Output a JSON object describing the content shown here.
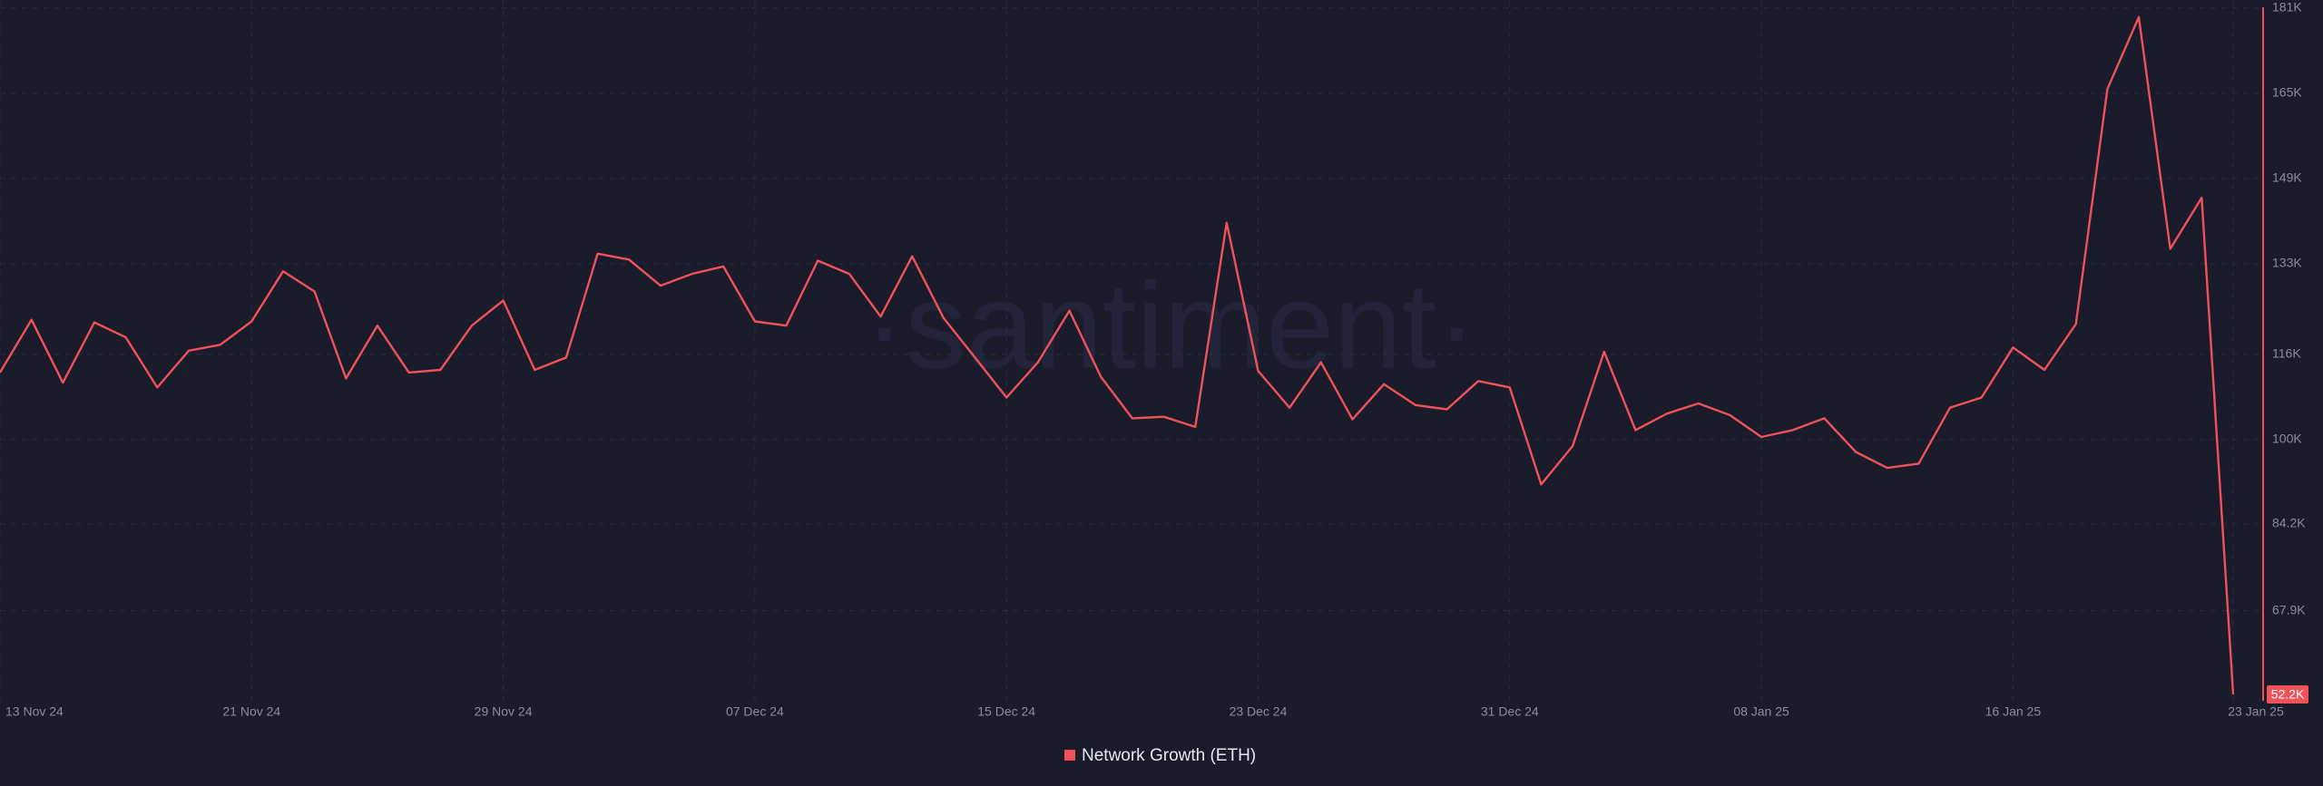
{
  "chart_data": {
    "type": "line",
    "watermark": "·santiment·",
    "categories": [
      "13 Nov 24",
      null,
      null,
      null,
      null,
      null,
      null,
      null,
      "21 Nov 24",
      null,
      null,
      null,
      null,
      null,
      null,
      null,
      "29 Nov 24",
      null,
      null,
      null,
      null,
      null,
      null,
      null,
      "07 Dec 24",
      null,
      null,
      null,
      null,
      null,
      null,
      null,
      "15 Dec 24",
      null,
      null,
      null,
      null,
      null,
      null,
      null,
      "23 Dec 24",
      null,
      null,
      null,
      null,
      null,
      null,
      null,
      "31 Dec 24",
      null,
      null,
      null,
      null,
      null,
      null,
      null,
      "08 Jan 25",
      null,
      null,
      null,
      null,
      null,
      null,
      null,
      "16 Jan 25",
      null,
      null,
      null,
      null,
      null,
      null,
      "23 Jan 25"
    ],
    "series": [
      {
        "name": "Network Growth (ETH)",
        "color": "#f0525a",
        "values": [
          112600,
          122500,
          110700,
          122000,
          119200,
          109800,
          116700,
          117800,
          122200,
          131600,
          127800,
          111500,
          121400,
          112600,
          113100,
          121400,
          126100,
          113100,
          115400,
          134900,
          133800,
          128900,
          131100,
          132500,
          122200,
          121400,
          133600,
          131100,
          123100,
          134400,
          122800,
          115400,
          107900,
          114500,
          124200,
          111800,
          104000,
          104300,
          102400,
          140700,
          112900,
          106000,
          114500,
          103800,
          110400,
          106500,
          105700,
          111000,
          109800,
          91600,
          98800,
          116500,
          101800,
          104900,
          106800,
          104600,
          100500,
          101800,
          104000,
          97700,
          94700,
          95500,
          106000,
          107900,
          117300,
          113100,
          121700,
          165800,
          179300,
          135800,
          145400,
          52200
        ]
      }
    ],
    "end_label": {
      "value": 52200,
      "label": "52.2K"
    },
    "ylim": [
      51000,
      182500
    ],
    "yticks": [
      {
        "value": 67900,
        "label": "67.9K"
      },
      {
        "value": 84200,
        "label": "84.2K"
      },
      {
        "value": 100000,
        "label": "100K"
      },
      {
        "value": 116000,
        "label": "116K"
      },
      {
        "value": 133000,
        "label": "133K"
      },
      {
        "value": 149000,
        "label": "149K"
      },
      {
        "value": 165000,
        "label": "165K"
      },
      {
        "value": 181000,
        "label": "181K"
      }
    ],
    "grid": true
  }
}
